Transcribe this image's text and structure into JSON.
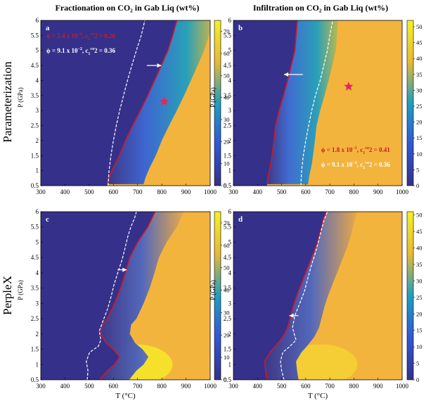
{
  "figure": {
    "col_titles": [
      "Fractionation on CO₂ in Gab Liq (wt%)",
      "Infiltration on CO₂ in Gab Liq (wt%)"
    ],
    "row_labels": [
      "Parameterization",
      "PerpleX"
    ]
  },
  "colors": {
    "low": "#35318a",
    "mid": "#1f9fbf",
    "high": "#f3b43e",
    "peak": "#f5f026",
    "red_boundary": "#d01828",
    "star": "#e8245a",
    "dashed": "#ffffff"
  },
  "chart_data": [
    {
      "type": "heatmap",
      "panel": "a",
      "row": "Parameterization",
      "title": "Fractionation on CO₂ in Gab Liq (wt%)",
      "xlabel": "T (°C)",
      "ylabel": "P (GPa)",
      "xlim": [
        300,
        1000
      ],
      "ylim": [
        0.5,
        6
      ],
      "xticks": [
        300,
        400,
        500,
        600,
        700,
        800,
        900,
        1000
      ],
      "yticks": [
        0.5,
        1,
        1.5,
        2,
        2.5,
        3,
        3.5,
        4,
        4.5,
        5,
        5.5,
        6
      ],
      "colorbar": {
        "min": 0,
        "max": 75,
        "ticks": [
          0,
          10,
          20,
          30,
          40,
          50,
          60,
          70
        ]
      },
      "red_curve": {
        "x": [
          575,
          582,
          600,
          625,
          650,
          680,
          712,
          742,
          770,
          798,
          825,
          845,
          862
        ],
        "y": [
          0.55,
          0.75,
          1.1,
          1.5,
          2.0,
          2.5,
          3.0,
          3.5,
          4.0,
          4.5,
          5.0,
          5.5,
          6.0
        ]
      },
      "white_curve": {
        "x": [
          578,
          582,
          590,
          600,
          612,
          626,
          642,
          658,
          676,
          695,
          715,
          730
        ],
        "y": [
          0.5,
          1.0,
          1.5,
          2.0,
          2.5,
          3.0,
          3.5,
          4.0,
          4.5,
          5.0,
          5.5,
          6.0
        ]
      },
      "arrow": {
        "x_from": 738,
        "x_to": 798,
        "y": 4.5
      },
      "star": {
        "x": 810,
        "y": 3.3
      },
      "legend": [
        {
          "phi": "ϕ = 2.4 x 10",
          "phi_exp": "−2",
          "tail": ", c",
          "c_sup": "co",
          "c_sub": "1",
          "c_tail": "2 = 0.26",
          "color": "red"
        },
        {
          "phi": "ϕ = 9.1 x 10",
          "phi_exp": "−2",
          "tail": ", c",
          "c_sup": "co",
          "c_sub": "1",
          "c_tail": "2 = 0.36",
          "color": "white"
        }
      ],
      "legend_pos": "top-left"
    },
    {
      "type": "heatmap",
      "panel": "b",
      "row": "Parameterization",
      "title": "Infiltration on CO₂ in Gab Liq (wt%)",
      "xlabel": "T (°C)",
      "ylabel": "P (GPa)",
      "xlim": [
        300,
        1000
      ],
      "ylim": [
        0.5,
        6
      ],
      "xticks": [
        300,
        400,
        500,
        600,
        700,
        800,
        900,
        1000
      ],
      "yticks": [
        0.5,
        1,
        1.5,
        2,
        2.5,
        3,
        3.5,
        4,
        4.5,
        5,
        5.5,
        6
      ],
      "colorbar": {
        "min": 0,
        "max": 52,
        "ticks": [
          0,
          5,
          10,
          15,
          20,
          25,
          30,
          35,
          40,
          45,
          50
        ]
      },
      "red_curve": {
        "x": [
          440,
          444,
          455,
          462,
          468,
          475,
          490,
          508,
          525,
          540,
          555,
          565
        ],
        "y": [
          0.55,
          0.8,
          1.2,
          1.6,
          2.0,
          2.5,
          3.0,
          3.5,
          4.0,
          4.5,
          5.0,
          6.0
        ]
      },
      "white_curve": {
        "x": [
          580,
          583,
          590,
          600,
          612,
          625,
          640,
          660,
          675,
          690,
          700,
          712
        ],
        "y": [
          0.5,
          1.0,
          1.5,
          2.0,
          2.5,
          3.0,
          3.5,
          4.0,
          4.5,
          5.0,
          5.5,
          6.0
        ]
      },
      "arrow": {
        "x_from": 588,
        "x_to": 510,
        "y": 4.2
      },
      "star": {
        "x": 778,
        "y": 3.8
      },
      "legend": [
        {
          "phi": "ϕ = 1.8 x 10",
          "phi_exp": "−1",
          "tail": ", c",
          "c_sup": "co",
          "c_sub": "1",
          "c_tail": "2 = 0.41",
          "color": "red"
        },
        {
          "phi": "ϕ = 9.1 x 10",
          "phi_exp": "−2",
          "tail": ", c",
          "c_sup": "co",
          "c_sub": "1",
          "c_tail": "2 = 0.36",
          "color": "white"
        }
      ],
      "legend_pos": "bottom-right"
    },
    {
      "type": "heatmap",
      "panel": "c",
      "row": "PerpleX",
      "xlabel": "T (°C)",
      "ylabel": "P (GPa)",
      "xlim": [
        300,
        1000
      ],
      "ylim": [
        0.5,
        6
      ],
      "xticks": [
        300,
        400,
        500,
        600,
        700,
        800,
        900,
        1000
      ],
      "yticks": [
        0.5,
        1,
        1.5,
        2,
        2.5,
        3,
        3.5,
        4,
        4.5,
        5,
        5.5,
        6
      ],
      "colorbar": {
        "min": 0,
        "max": 75,
        "ticks": [
          0,
          10,
          20,
          30,
          40,
          50,
          60,
          70
        ]
      },
      "red_curve": {
        "x": [
          545,
          575,
          605,
          625,
          600,
          570,
          548,
          553,
          575,
          605,
          630,
          650,
          668,
          700,
          742,
          772
        ],
        "y": [
          0.5,
          0.8,
          1.0,
          1.25,
          1.5,
          1.7,
          2.0,
          2.3,
          2.5,
          3.0,
          3.5,
          4.0,
          4.5,
          5.0,
          5.5,
          6.0
        ]
      },
      "white_curve": {
        "x": [
          492,
          495,
          488,
          502,
          538,
          548,
          542,
          556,
          575,
          590,
          602,
          618,
          635,
          648,
          660,
          672,
          688,
          695
        ],
        "y": [
          0.5,
          0.8,
          1.1,
          1.4,
          1.6,
          1.8,
          2.1,
          2.4,
          2.8,
          3.2,
          3.6,
          4.0,
          4.4,
          4.8,
          5.2,
          5.5,
          5.8,
          6.0
        ]
      },
      "arrow": {
        "x_from": 617,
        "x_to": 655,
        "y": 4.1
      },
      "star": null,
      "legend": [],
      "legend_pos": "none"
    },
    {
      "type": "heatmap",
      "panel": "d",
      "row": "PerpleX",
      "xlabel": "T (°C)",
      "ylabel": "P (GPa)",
      "xlim": [
        300,
        1000
      ],
      "ylim": [
        0.5,
        6
      ],
      "xticks": [
        300,
        400,
        500,
        600,
        700,
        800,
        900,
        1000
      ],
      "yticks": [
        0.5,
        1,
        1.5,
        2,
        2.5,
        3,
        3.5,
        4,
        4.5,
        5,
        5.5,
        6
      ],
      "colorbar": {
        "min": 0,
        "max": 51,
        "ticks": [
          0,
          5,
          10,
          15,
          20,
          25,
          30,
          35,
          40,
          45,
          50
        ]
      },
      "red_curve": {
        "x": [
          440,
          434,
          430,
          452,
          475,
          505,
          525,
          535,
          548,
          565,
          585,
          605,
          625,
          645,
          660,
          672,
          685
        ],
        "y": [
          0.5,
          0.8,
          1.1,
          1.4,
          1.6,
          1.9,
          2.2,
          2.5,
          2.9,
          3.3,
          3.7,
          4.1,
          4.5,
          4.9,
          5.3,
          5.7,
          6.0
        ]
      },
      "white_curve": {
        "x": [
          510,
          500,
          495,
          505,
          535,
          560,
          545,
          555,
          575,
          595,
          608,
          622,
          638,
          652,
          665,
          675,
          690
        ],
        "y": [
          0.5,
          0.8,
          1.1,
          1.4,
          1.6,
          1.8,
          2.2,
          2.6,
          3.0,
          3.4,
          3.8,
          4.2,
          4.6,
          5.0,
          5.4,
          5.7,
          6.0
        ]
      },
      "arrow": {
        "x_from": 570,
        "x_to": 532,
        "y": 2.6
      },
      "star": null,
      "legend": [],
      "legend_pos": "none"
    }
  ]
}
